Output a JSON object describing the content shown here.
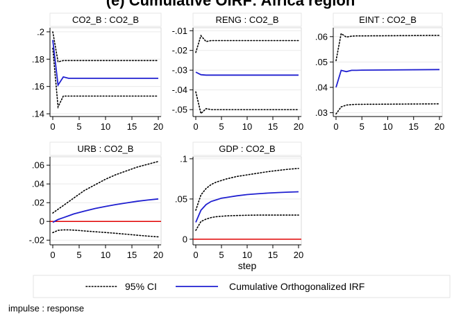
{
  "title": "(e) Cumulative OIRF: Africa region",
  "chart_data": {
    "type": "line",
    "legend": {
      "placement": "bottom",
      "entries": [
        {
          "name": "95% CI",
          "style": "dotted",
          "color": "#000000"
        },
        {
          "name": "Cumulative Orthogonalized IRF",
          "style": "solid",
          "color": "#1f1fd0"
        }
      ]
    },
    "note": "impulse : response",
    "xlabel": "step",
    "xticks": [
      0,
      5,
      10,
      15,
      20
    ],
    "zero_line_color": "#e00000",
    "panels": [
      {
        "title": "CO2_B : CO2_B",
        "ylim": [
          0.138,
          0.203
        ],
        "yticks": [
          0.2,
          0.18,
          0.16,
          0.14
        ],
        "ytick_labels": [
          ".2",
          ".18",
          ".16",
          ".14"
        ],
        "zero_line": false,
        "x": [
          0,
          1,
          2,
          3,
          4,
          5,
          20
        ],
        "irf": [
          0.194,
          0.161,
          0.167,
          0.166,
          0.166,
          0.166,
          0.166
        ],
        "lower": [
          0.188,
          0.145,
          0.153,
          0.153,
          0.153,
          0.153,
          0.153
        ],
        "upper": [
          0.2,
          0.178,
          0.179,
          0.179,
          0.179,
          0.179,
          0.179
        ]
      },
      {
        "title": "RENG : CO2_B",
        "ylim": [
          -0.0535,
          -0.0085
        ],
        "yticks": [
          -0.01,
          -0.02,
          -0.03,
          -0.04,
          -0.05
        ],
        "ytick_labels": [
          "-.01",
          "-.02",
          "-.03",
          "-.04",
          "-.05"
        ],
        "zero_line": false,
        "x": [
          0,
          1,
          2,
          3,
          4,
          5,
          20
        ],
        "irf": [
          -0.031,
          -0.0323,
          -0.0325,
          -0.0325,
          -0.0325,
          -0.0325,
          -0.0325
        ],
        "lower": [
          -0.041,
          -0.052,
          -0.0495,
          -0.05,
          -0.05,
          -0.05,
          -0.05
        ],
        "upper": [
          -0.021,
          -0.0125,
          -0.0155,
          -0.015,
          -0.015,
          -0.015,
          -0.015
        ]
      },
      {
        "title": "EINT : CO2_B",
        "ylim": [
          0.0285,
          0.0635
        ],
        "yticks": [
          0.06,
          0.05,
          0.04,
          0.03
        ],
        "ytick_labels": [
          ".06",
          ".05",
          ".04",
          ".03"
        ],
        "zero_line": false,
        "x": [
          0,
          1,
          2,
          3,
          4,
          5,
          20
        ],
        "irf": [
          0.04,
          0.0467,
          0.0462,
          0.0467,
          0.0467,
          0.0468,
          0.047
        ],
        "lower": [
          0.0295,
          0.0323,
          0.033,
          0.0332,
          0.0333,
          0.0333,
          0.0335
        ],
        "upper": [
          0.0505,
          0.0612,
          0.0598,
          0.0602,
          0.0603,
          0.0603,
          0.0605
        ]
      },
      {
        "title": "URB : CO2_B",
        "ylim": [
          -0.025,
          0.069
        ],
        "yticks": [
          0.06,
          0.04,
          0.02,
          0,
          -0.02
        ],
        "ytick_labels": [
          ".06",
          ".04",
          ".02",
          "0",
          "-.02"
        ],
        "zero_line": true,
        "x": [
          0,
          1,
          2,
          3,
          4,
          5,
          6,
          8,
          10,
          12,
          14,
          16,
          18,
          20
        ],
        "irf": [
          -0.001,
          0.002,
          0.004,
          0.006,
          0.008,
          0.0095,
          0.011,
          0.0138,
          0.016,
          0.018,
          0.0198,
          0.0215,
          0.0228,
          0.024
        ],
        "lower": [
          -0.012,
          -0.0095,
          -0.009,
          -0.009,
          -0.0093,
          -0.0097,
          -0.0102,
          -0.011,
          -0.0118,
          -0.0127,
          -0.0137,
          -0.0147,
          -0.0157,
          -0.0165
        ],
        "upper": [
          0.009,
          0.013,
          0.017,
          0.021,
          0.025,
          0.029,
          0.033,
          0.039,
          0.045,
          0.05,
          0.054,
          0.058,
          0.061,
          0.064
        ]
      },
      {
        "title": "GDP : CO2_B",
        "ylim": [
          -0.007,
          0.1025
        ],
        "yticks": [
          0.1,
          0.05,
          0
        ],
        "ytick_labels": [
          ".1",
          ".05",
          "0"
        ],
        "zero_line": true,
        "x": [
          0,
          1,
          2,
          3,
          4,
          5,
          6,
          8,
          10,
          12,
          14,
          16,
          18,
          20
        ],
        "irf": [
          0.021,
          0.036,
          0.043,
          0.047,
          0.049,
          0.051,
          0.052,
          0.054,
          0.0555,
          0.0565,
          0.0573,
          0.058,
          0.0585,
          0.059
        ],
        "lower": [
          0.011,
          0.022,
          0.025,
          0.027,
          0.028,
          0.0285,
          0.029,
          0.0295,
          0.0298,
          0.03,
          0.03,
          0.03,
          0.03,
          0.03
        ],
        "upper": [
          0.036,
          0.055,
          0.063,
          0.068,
          0.071,
          0.073,
          0.075,
          0.078,
          0.08,
          0.082,
          0.084,
          0.0855,
          0.087,
          0.088
        ]
      }
    ]
  }
}
